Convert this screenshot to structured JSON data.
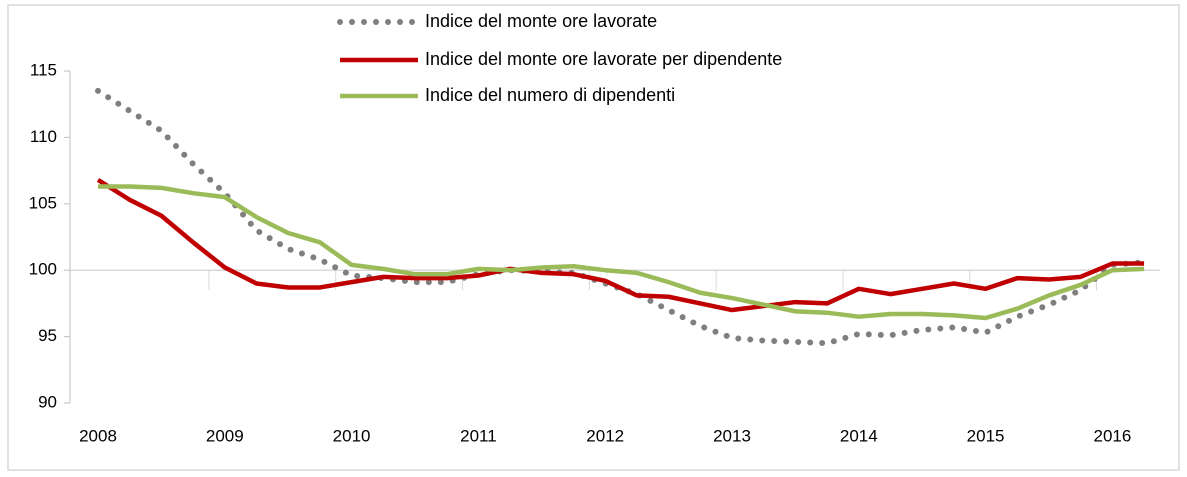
{
  "chart_data": {
    "type": "line",
    "categories": [
      "2008",
      null,
      null,
      null,
      "2009",
      null,
      null,
      null,
      "2010",
      null,
      null,
      null,
      "2011",
      null,
      null,
      null,
      "2012",
      null,
      null,
      null,
      "2013",
      null,
      null,
      null,
      "2014",
      null,
      null,
      null,
      "2015",
      null,
      null,
      null,
      "2016",
      null
    ],
    "series": [
      {
        "name": "Indice del monte ore lavorate",
        "color": "#7f7f7f",
        "style": "dotted",
        "values": [
          113.5,
          112,
          110.5,
          108,
          105.8,
          103,
          101.6,
          100.8,
          99.6,
          99.4,
          99.1,
          99.1,
          99.7,
          100,
          99.9,
          99.8,
          99,
          98.2,
          97,
          95.8,
          94.9,
          94.7,
          94.6,
          94.5,
          95.2,
          95.1,
          95.5,
          95.7,
          95.3,
          96.5,
          97.4,
          98.5,
          100.4,
          100.6
        ]
      },
      {
        "name": "Indice del monte ore lavorate per dipendente",
        "color": "#c00000",
        "style": "solid",
        "values": [
          106.8,
          105.3,
          104.1,
          102.1,
          100.2,
          99,
          98.7,
          98.7,
          99.1,
          99.5,
          99.4,
          99.4,
          99.6,
          100.1,
          99.8,
          99.7,
          99.2,
          98.1,
          98,
          97.5,
          97,
          97.3,
          97.6,
          97.5,
          98.6,
          98.2,
          98.6,
          99,
          98.6,
          99.4,
          99.3,
          99.5,
          100.5,
          100.5
        ]
      },
      {
        "name": "Indice del numero di dipendenti",
        "color": "#9bbb59",
        "style": "solid",
        "values": [
          106.3,
          106.3,
          106.2,
          105.8,
          105.5,
          104,
          102.8,
          102.1,
          100.4,
          100.1,
          99.7,
          99.7,
          100.1,
          100,
          100.2,
          100.3,
          100,
          99.8,
          99.1,
          98.3,
          97.9,
          97.4,
          96.9,
          96.8,
          96.5,
          96.7,
          96.7,
          96.6,
          96.4,
          97.1,
          98.1,
          98.9,
          100,
          100.1
        ]
      }
    ],
    "ylim": [
      90,
      115
    ],
    "yticks": [
      90,
      95,
      100,
      105,
      110,
      115
    ],
    "x_axis_crosses": 100,
    "legend": "top"
  }
}
